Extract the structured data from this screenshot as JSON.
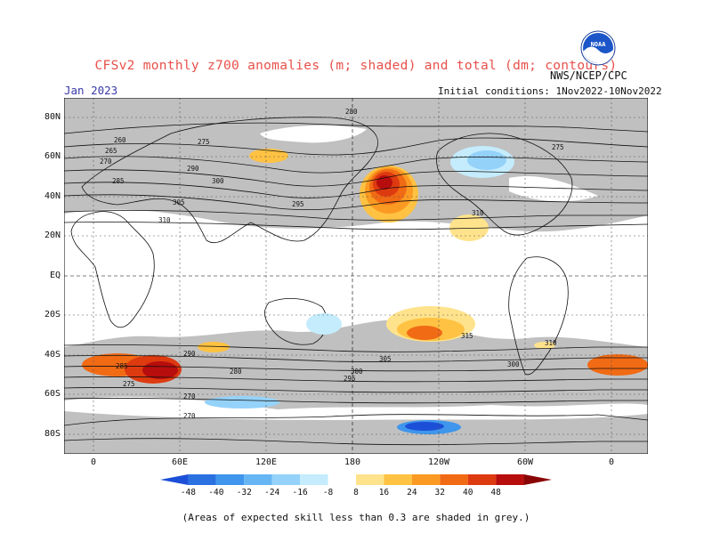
{
  "title": "CFSv2 monthly z700 anomalies (m; shaded) and total (dm; contours)",
  "month": "Jan 2023",
  "initial_conditions": "Initial conditions: 1Nov2022-10Nov2022",
  "agency": "NWS/NCEP/CPC",
  "logo_text": "NOAA",
  "lat_labels": [
    "80N",
    "60N",
    "40N",
    "20N",
    "EQ",
    "20S",
    "40S",
    "60S",
    "80S"
  ],
  "lon_labels": [
    "0",
    "60E",
    "120E",
    "180",
    "120W",
    "60W",
    "0"
  ],
  "colorbar": {
    "labels": [
      "-48",
      "-40",
      "-32",
      "-24",
      "-16",
      "-8",
      "8",
      "16",
      "24",
      "32",
      "40",
      "48"
    ],
    "colors": [
      "#1c4fd8",
      "#2a70e0",
      "#3f96ec",
      "#66b6f4",
      "#94d2fa",
      "#c4ecfd",
      "#ffffff",
      "#ffe38c",
      "#ffc242",
      "#fb9a22",
      "#f16a14",
      "#de3a10",
      "#b80d0d",
      "#8a0505"
    ]
  },
  "contour_labels": [
    "280",
    "275",
    "260",
    "265",
    "270",
    "285",
    "290",
    "295",
    "300",
    "305",
    "310",
    "315",
    "310",
    "305",
    "300",
    "295",
    "290",
    "285",
    "280",
    "275",
    "270",
    "300",
    "310",
    "275",
    "270"
  ],
  "footnote": "(Areas of expected skill less than 0.3 are shaded in grey.)",
  "colors": {
    "grey": "#c0c0c0",
    "title": "#e8504a",
    "month": "#3a3aa8"
  }
}
